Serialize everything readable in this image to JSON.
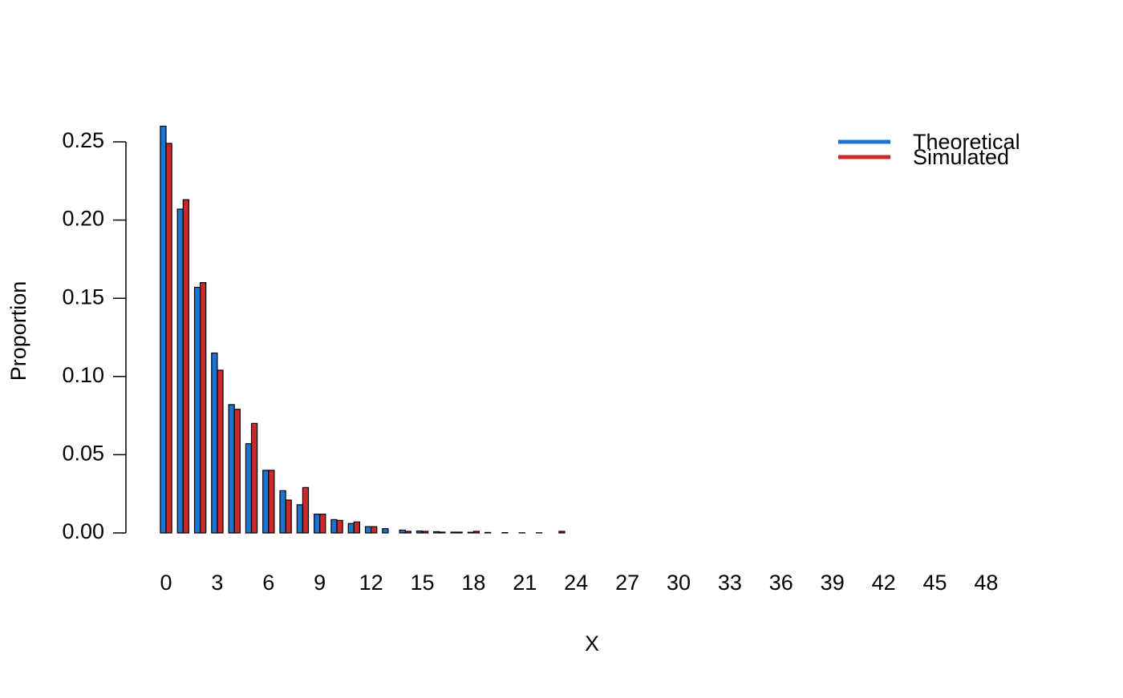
{
  "chart_data": {
    "type": "grouped-bar",
    "xlabel": "X",
    "ylabel": "Proportion",
    "categories": [
      "0",
      null,
      null,
      "3",
      null,
      null,
      "6",
      null,
      null,
      "9",
      null,
      null,
      "12",
      null,
      null,
      "15",
      null,
      null,
      "18",
      null,
      null,
      "21",
      null,
      null,
      "24",
      null,
      null,
      "27",
      null,
      null,
      "30",
      null,
      null,
      "33",
      null,
      null,
      "36",
      null,
      null,
      "39",
      null,
      null,
      "42",
      null,
      null,
      "45",
      null,
      null,
      "48",
      null,
      null
    ],
    "series": [
      {
        "name": "Theoretical",
        "color": "#1b74d0",
        "values": [
          0.26,
          0.207,
          0.157,
          0.115,
          0.082,
          0.057,
          0.04,
          0.027,
          0.018,
          0.012,
          0.0085,
          0.006,
          0.004,
          0.0027,
          0.0018,
          0.0012,
          0.0008,
          0.0005,
          0.0004,
          0.0003,
          0.0002,
          0.0001,
          0.0001,
          0,
          0,
          0,
          0,
          0,
          0,
          0,
          0,
          0,
          0,
          0,
          0,
          0,
          0,
          0,
          0,
          0,
          0,
          0,
          0,
          0,
          0,
          0,
          0,
          0,
          0,
          0,
          0
        ]
      },
      {
        "name": "Simulated",
        "color": "#cd2828",
        "values": [
          0.249,
          0.213,
          0.16,
          0.104,
          0.079,
          0.07,
          0.04,
          0.021,
          0.029,
          0.012,
          0.008,
          0.007,
          0.004,
          0,
          0.001,
          0.001,
          0.0005,
          0.0005,
          0.001,
          0,
          0,
          0,
          0,
          0.001,
          0,
          0,
          0,
          0,
          0,
          0,
          0,
          0,
          0,
          0,
          0,
          0,
          0,
          0,
          0,
          0,
          0,
          0,
          0,
          0,
          0,
          0,
          0,
          0,
          0,
          0,
          0
        ]
      }
    ],
    "ylim": [
      0,
      0.25
    ],
    "yticks": [
      {
        "value": 0,
        "label": "0.00"
      },
      {
        "value": 0.05,
        "label": "0.05"
      },
      {
        "value": 0.1,
        "label": "0.10"
      },
      {
        "value": 0.15,
        "label": "0.15"
      },
      {
        "value": 0.2,
        "label": "0.20"
      },
      {
        "value": 0.25,
        "label": "0.25"
      }
    ],
    "legend": "top-right"
  }
}
